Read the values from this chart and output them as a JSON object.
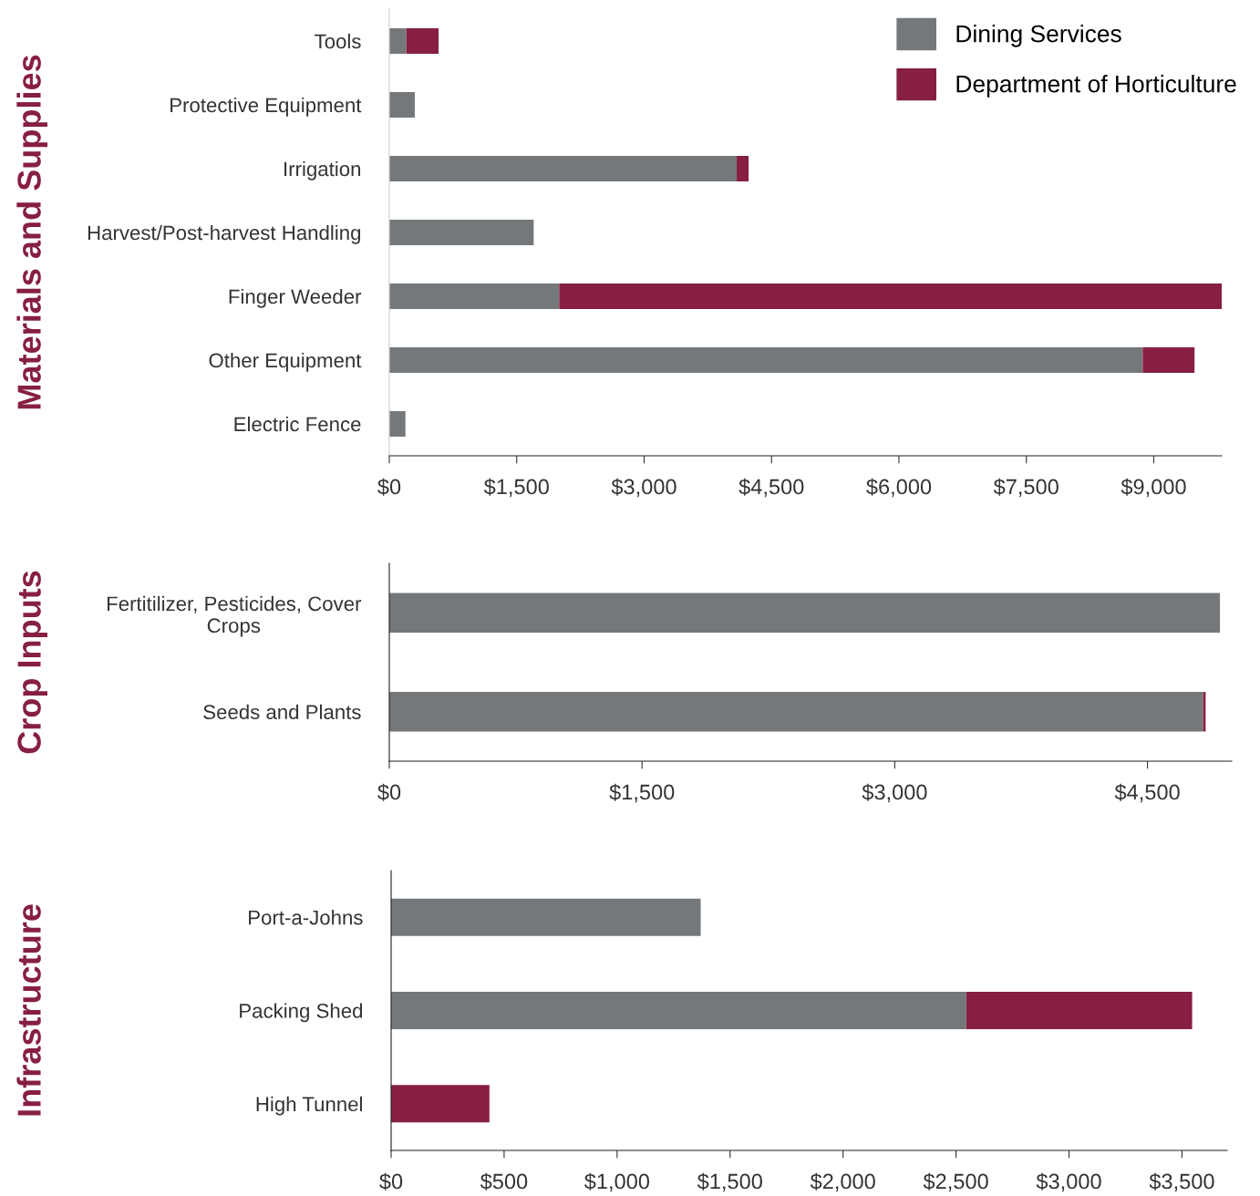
{
  "chart_data": [
    {
      "type": "bar",
      "orientation": "horizontal",
      "stacked": true,
      "ylabel": "Materials and Supplies",
      "legend": "top right",
      "categories": [
        "Tools",
        "Protective Equipment",
        "Irrigation",
        "Harvest/Post-harvest Handling",
        "Finger Weeder",
        "Other Equipment",
        "Electric Fence"
      ],
      "series": [
        {
          "name": "Dining Services",
          "color": "#75787b",
          "values": [
            200,
            300,
            4090,
            1700,
            2000,
            8870,
            190
          ]
        },
        {
          "name": "Department of Horticulture",
          "color": "#861f41",
          "values": [
            380,
            null,
            140,
            null,
            7800,
            610,
            null
          ]
        }
      ],
      "xlim": [
        0,
        9800
      ],
      "xticks": [
        {
          "value": 0,
          "label": "$0"
        },
        {
          "value": 1500,
          "label": "$1,500"
        },
        {
          "value": 3000,
          "label": "$3,000"
        },
        {
          "value": 4500,
          "label": "$4,500"
        },
        {
          "value": 6000,
          "label": "$6,000"
        },
        {
          "value": 7500,
          "label": "$7,500"
        },
        {
          "value": 9000,
          "label": "$9,000"
        }
      ]
    },
    {
      "type": "bar",
      "orientation": "horizontal",
      "stacked": true,
      "ylabel": "Crop Inputs",
      "categories": [
        "Fertitilizer, Pesticides, Cover Crops",
        "Seeds and Plants"
      ],
      "series": [
        {
          "color": "#75787b",
          "values": [
            4930,
            4830
          ]
        },
        {
          "color": "#861f41",
          "values": [
            null,
            15
          ]
        }
      ],
      "xlim": [
        0,
        5000
      ],
      "xticks": [
        {
          "value": 0,
          "label": "$0"
        },
        {
          "value": 1500,
          "label": "$1,500"
        },
        {
          "value": 3000,
          "label": "$3,000"
        },
        {
          "value": 4500,
          "label": "$4,500"
        }
      ]
    },
    {
      "type": "bar",
      "orientation": "horizontal",
      "stacked": true,
      "ylabel": "Infrastructure",
      "categories": [
        "Port-a-Johns",
        "Packing Shed",
        "High Tunnel"
      ],
      "series": [
        {
          "color": "#75787b",
          "values": [
            1370,
            2545,
            null
          ]
        },
        {
          "color": "#861f41",
          "values": [
            null,
            1000,
            435
          ]
        }
      ],
      "xlim": [
        0,
        3700
      ],
      "xticks": [
        {
          "value": 0,
          "label": "$0"
        },
        {
          "value": 500,
          "label": "$500"
        },
        {
          "value": 1000,
          "label": "$1,000"
        },
        {
          "value": 1500,
          "label": "$1,500"
        },
        {
          "value": 2000,
          "label": "$2,000"
        },
        {
          "value": 2500,
          "label": "$2,500"
        },
        {
          "value": 3000,
          "label": "$3,000"
        },
        {
          "value": 3500,
          "label": "$3,500"
        }
      ]
    }
  ]
}
